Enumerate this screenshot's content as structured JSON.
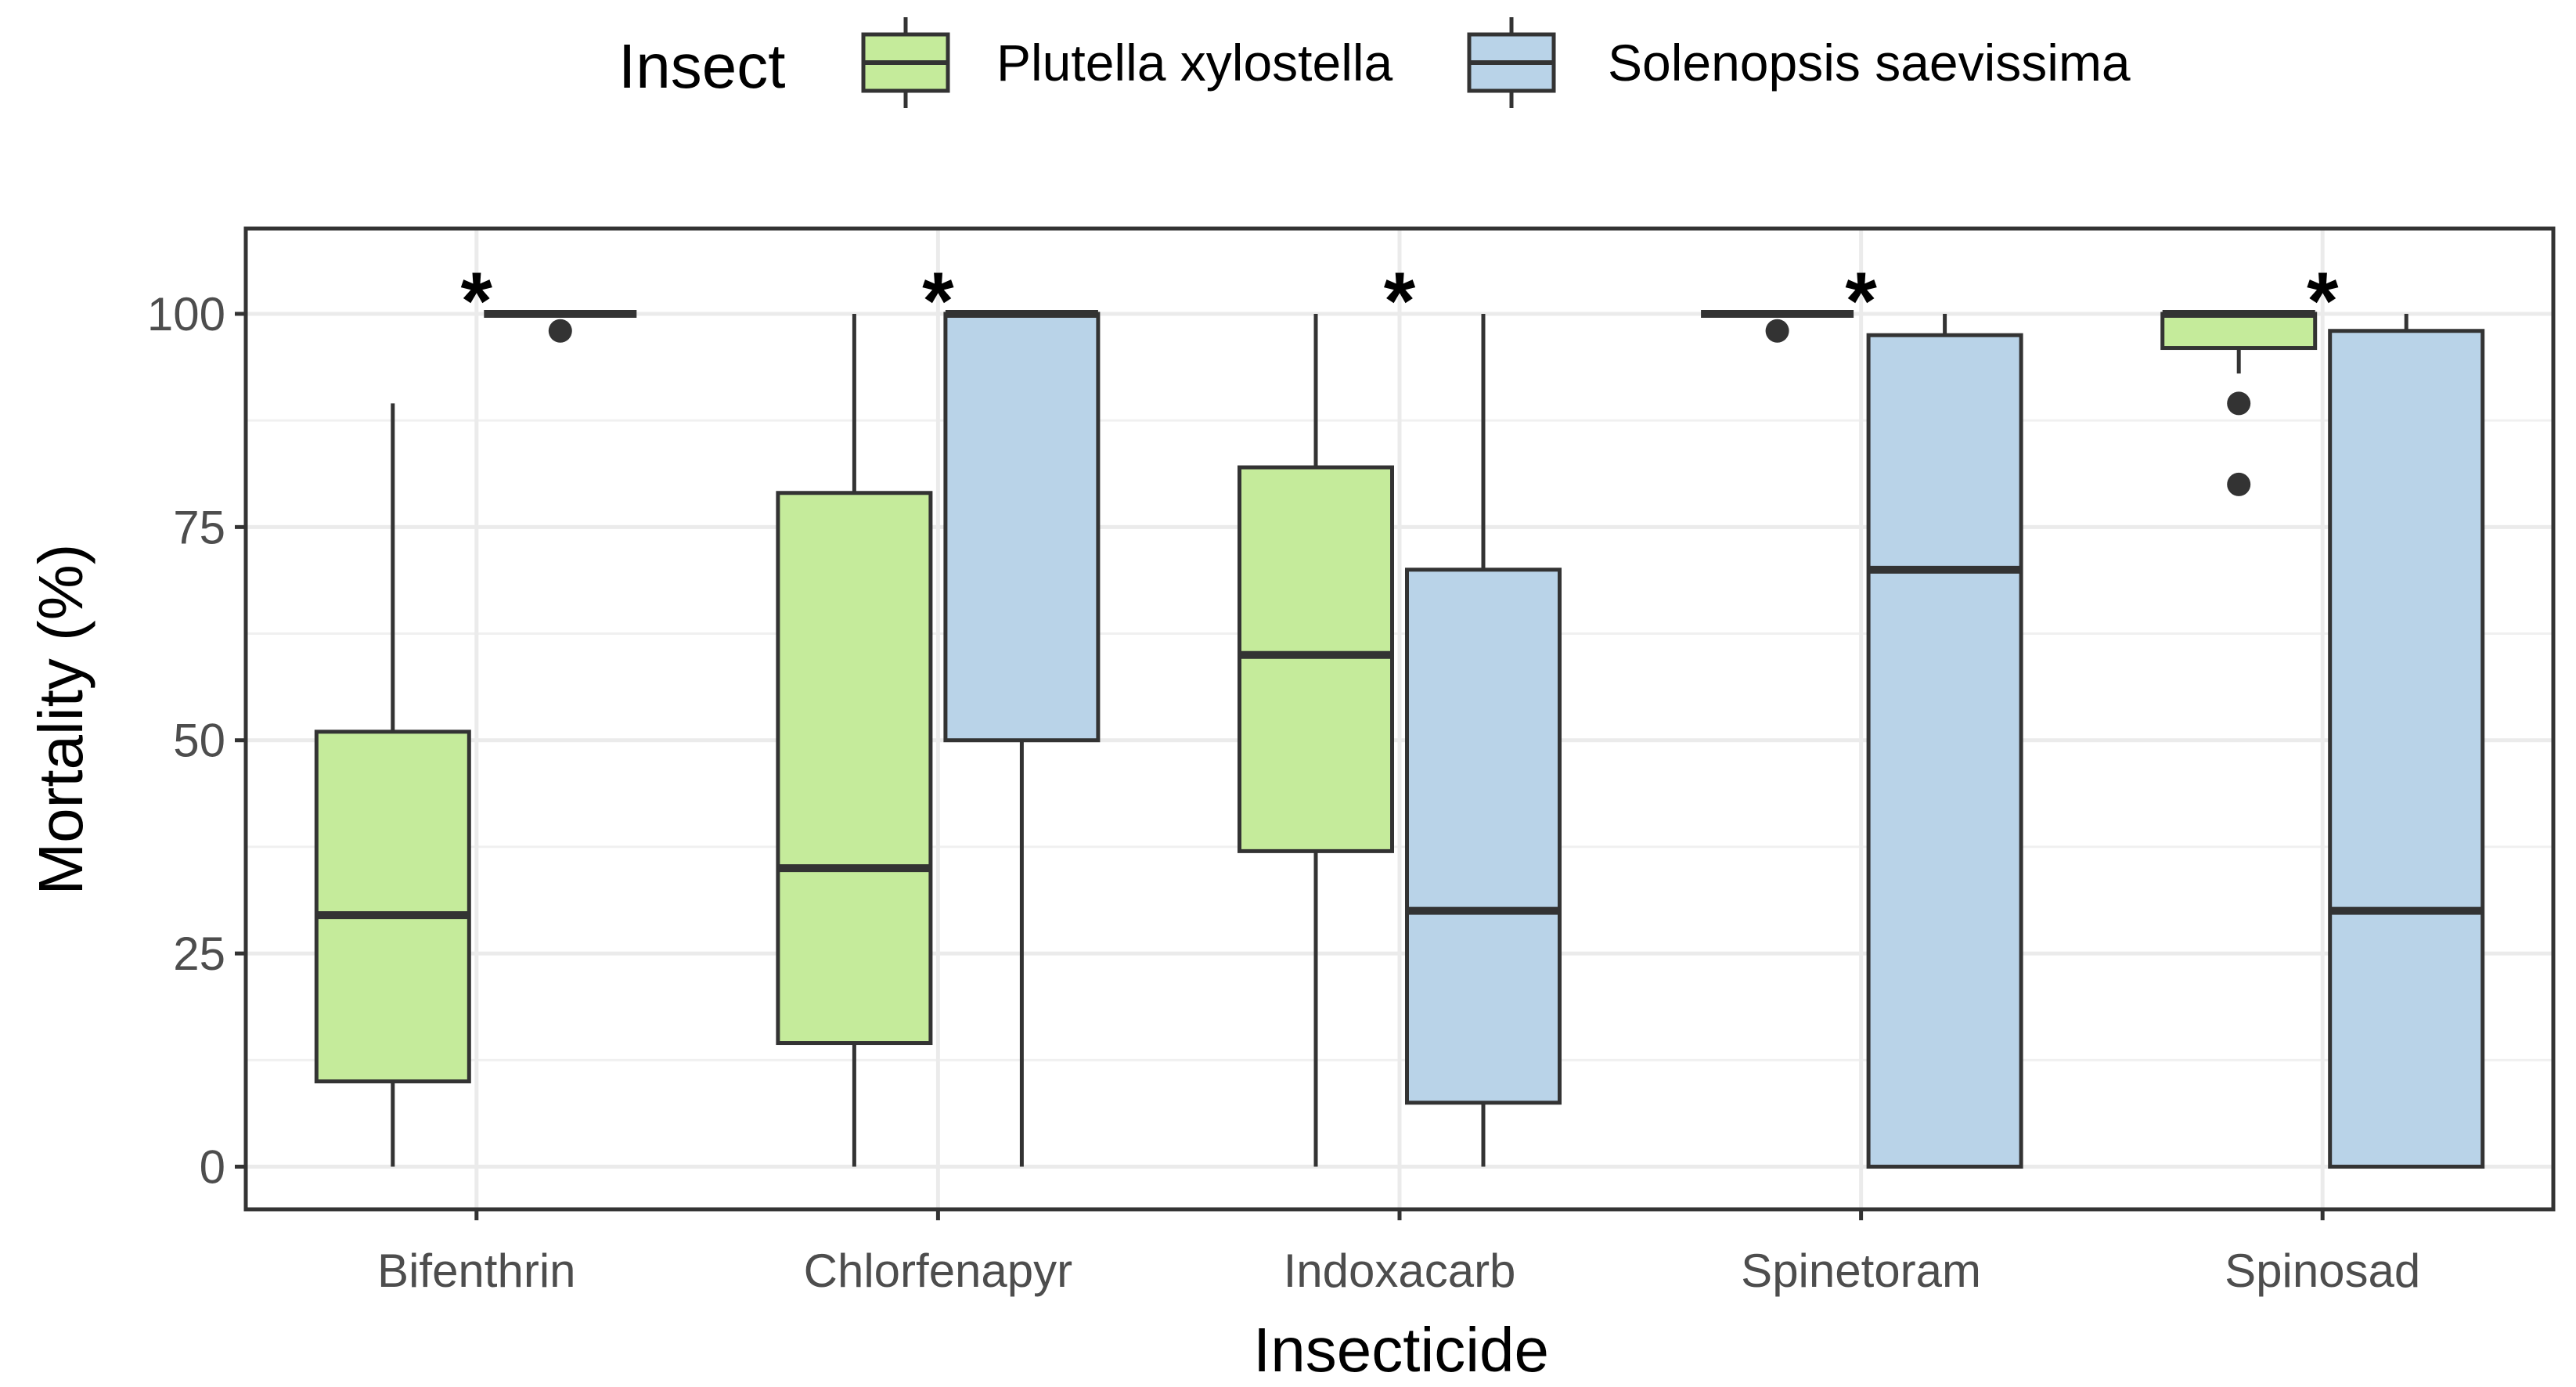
{
  "chart_data": {
    "type": "boxplot",
    "xlabel": "Insecticide",
    "ylabel": "Mortality (%)",
    "ylim": [
      -5,
      110
    ],
    "yticks": [
      0,
      25,
      50,
      75,
      100
    ],
    "ytick_labels": [
      "0",
      "25",
      "50",
      "75",
      "100"
    ],
    "categories": [
      "Bifenthrin",
      "Chlorfenapyr",
      "Indoxacarb",
      "Spinetoram",
      "Spinosad"
    ],
    "legend": {
      "title": "Insect",
      "position": "top",
      "entries": [
        "Plutella xylostella",
        "Solenopsis saevissima"
      ]
    },
    "series": [
      {
        "name": "Plutella xylostella",
        "color": "#c5eb9b",
        "boxes": [
          {
            "category": "Bifenthrin",
            "lower_whisker": 0,
            "q1": 10,
            "median": 29.5,
            "q3": 51,
            "upper_whisker": 89.5,
            "outliers": []
          },
          {
            "category": "Chlorfenapyr",
            "lower_whisker": 0,
            "q1": 14.5,
            "median": 35,
            "q3": 79,
            "upper_whisker": 100,
            "outliers": []
          },
          {
            "category": "Indoxacarb",
            "lower_whisker": 0,
            "q1": 37,
            "median": 60,
            "q3": 82,
            "upper_whisker": 100,
            "outliers": []
          },
          {
            "category": "Spinetoram",
            "lower_whisker": 100,
            "q1": 100,
            "median": 100,
            "q3": 100,
            "upper_whisker": 100,
            "outliers": [
              98
            ]
          },
          {
            "category": "Spinosad",
            "lower_whisker": 93,
            "q1": 96,
            "median": 100,
            "q3": 100,
            "upper_whisker": 100,
            "outliers": [
              89.5,
              80
            ]
          }
        ]
      },
      {
        "name": "Solenopsis saevissima",
        "color": "#b9d3e8",
        "boxes": [
          {
            "category": "Bifenthrin",
            "lower_whisker": 100,
            "q1": 100,
            "median": 100,
            "q3": 100,
            "upper_whisker": 100,
            "outliers": [
              98
            ]
          },
          {
            "category": "Chlorfenapyr",
            "lower_whisker": 0,
            "q1": 50,
            "median": 100,
            "q3": 100,
            "upper_whisker": 100,
            "outliers": []
          },
          {
            "category": "Indoxacarb",
            "lower_whisker": 0,
            "q1": 7.5,
            "median": 30,
            "q3": 70,
            "upper_whisker": 100,
            "outliers": []
          },
          {
            "category": "Spinetoram",
            "lower_whisker": 0,
            "q1": 0,
            "median": 70,
            "q3": 97.5,
            "upper_whisker": 100,
            "outliers": []
          },
          {
            "category": "Spinosad",
            "lower_whisker": 0,
            "q1": 0,
            "median": 30,
            "q3": 98,
            "upper_whisker": 100,
            "outliers": []
          }
        ]
      }
    ],
    "annotations": [
      {
        "category": "Bifenthrin",
        "text": "*"
      },
      {
        "category": "Chlorfenapyr",
        "text": "*"
      },
      {
        "category": "Indoxacarb",
        "text": "*"
      },
      {
        "category": "Spinetoram",
        "text": "*"
      },
      {
        "category": "Spinosad",
        "text": "*"
      }
    ],
    "grid": true
  }
}
